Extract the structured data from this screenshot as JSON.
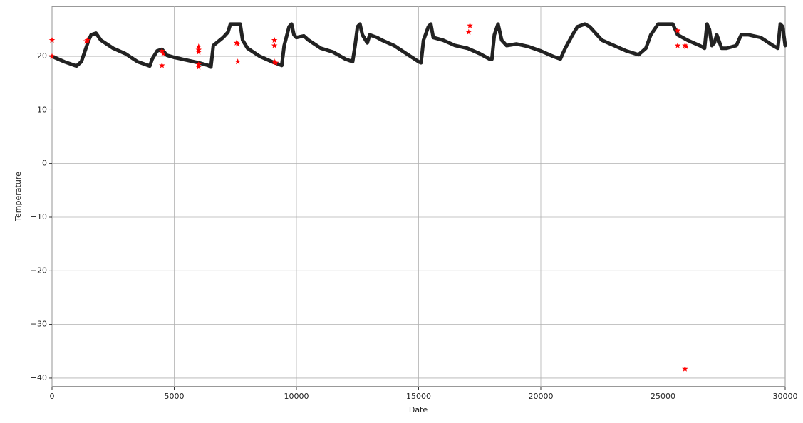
{
  "chart_data": {
    "type": "line",
    "x_label": "Date",
    "y_label": "Temperature",
    "xlim": [
      0,
      30000
    ],
    "ylim": [
      -41.6,
      29.3
    ],
    "xticks": [
      0,
      5000,
      10000,
      15000,
      20000,
      25000,
      30000
    ],
    "yticks": [
      {
        "value": -40,
        "label": "−40"
      },
      {
        "value": -30,
        "label": "−30"
      },
      {
        "value": -20,
        "label": "−20"
      },
      {
        "value": -10,
        "label": "−10"
      },
      0,
      10,
      20
    ],
    "grid": true,
    "series": [
      {
        "color": "#222222",
        "x": [
          0,
          500,
          1000,
          1200,
          1500,
          1600,
          1800,
          2000,
          2500,
          3000,
          3500,
          4000,
          4100,
          4300,
          4500,
          4700,
          5000,
          5500,
          6000,
          6400,
          6500,
          6600,
          7000,
          7200,
          7300,
          7500,
          7700,
          7800,
          8000,
          8500,
          9000,
          9400,
          9500,
          9700,
          9800,
          9900,
          10000,
          10300,
          10500,
          11000,
          11500,
          12000,
          12300,
          12400,
          12500,
          12600,
          12700,
          12900,
          13000,
          13300,
          13500,
          14000,
          14500,
          15000,
          15100,
          15200,
          15400,
          15500,
          15600,
          16000,
          16500,
          17000,
          17500,
          17900,
          18000,
          18100,
          18250,
          18400,
          18600,
          19000,
          19500,
          20000,
          20500,
          20800,
          21000,
          21300,
          21500,
          21800,
          22000,
          22500,
          23000,
          23500,
          24000,
          24300,
          24500,
          24800,
          25400,
          25600,
          26000,
          26500,
          26700,
          26800,
          26900,
          27000,
          27100,
          27200,
          27400,
          27600,
          28000,
          28200,
          28500,
          29000,
          29500,
          29700,
          29800,
          29900,
          30000
        ],
        "values": [
          20,
          19,
          18.2,
          19,
          23,
          24,
          24.3,
          23,
          21.5,
          20.5,
          19,
          18.2,
          19.5,
          21,
          21.3,
          20.2,
          19.8,
          19.3,
          18.8,
          18.3,
          18,
          22,
          23.5,
          24.5,
          26,
          26,
          26,
          23,
          21.5,
          20,
          19,
          18.3,
          22,
          25.5,
          26,
          24,
          23.5,
          23.8,
          23,
          21.5,
          20.8,
          19.5,
          19,
          22,
          25.5,
          26,
          24,
          22.5,
          24,
          23.5,
          23,
          22,
          20.5,
          19,
          18.8,
          23,
          25.5,
          26,
          23.5,
          23,
          22,
          21.5,
          20.5,
          19.5,
          19.5,
          24,
          26,
          23,
          22,
          22.3,
          21.8,
          21,
          20,
          19.5,
          21.5,
          24,
          25.5,
          26,
          25.5,
          23,
          22,
          21,
          20.3,
          21.5,
          24,
          26,
          26,
          24,
          23,
          22,
          21.5,
          26,
          25,
          22,
          22.5,
          24,
          21.5,
          21.5,
          22,
          24,
          24,
          23.5,
          22,
          21.5,
          26,
          25.5,
          22
        ]
      },
      {
        "color": "#ff0000",
        "type": "scatter",
        "x": [
          0,
          0,
          1400,
          1450,
          4500,
          4550,
          4500,
          6000,
          6000,
          6000,
          6000,
          6000,
          7550,
          7600,
          7600,
          9100,
          9100,
          9100,
          9150,
          17100,
          17050,
          25600,
          25600,
          25900,
          25950,
          25900
        ],
        "values": [
          23,
          20,
          22.8,
          23,
          21,
          20.5,
          18.3,
          21.8,
          21.2,
          20.8,
          18.5,
          18,
          22.5,
          22.3,
          19,
          23,
          22,
          19,
          18.8,
          25.7,
          24.5,
          24.8,
          22,
          22,
          21.8,
          -38.3
        ]
      }
    ]
  }
}
